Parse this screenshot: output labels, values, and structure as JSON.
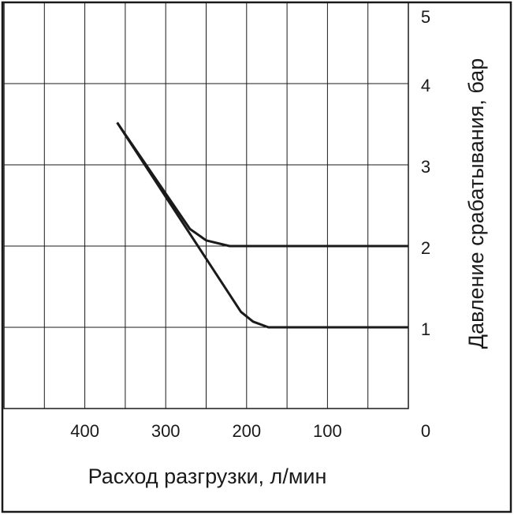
{
  "chart_data": {
    "type": "line",
    "xlabel": "Расход разгрузки, л/мин",
    "ylabel": "Давление срабатывания, бар",
    "xlim": [
      500,
      0
    ],
    "ylim": [
      0,
      5
    ],
    "xticks": [
      0,
      100,
      200,
      300,
      400
    ],
    "yticks": [
      1,
      2,
      3,
      4,
      5
    ],
    "minor_xticks": [
      50,
      150,
      250,
      350,
      450
    ],
    "grid": true,
    "series": [
      {
        "color": "#1a1a1a",
        "x": [
          360,
          270,
          250,
          221,
          0
        ],
        "values": [
          3.52,
          2.21,
          2.07,
          2.0,
          2.0
        ]
      },
      {
        "color": "#1a1a1a",
        "x": [
          360,
          207,
          192,
          173,
          0
        ],
        "values": [
          3.52,
          1.19,
          1.07,
          1.0,
          1.0
        ]
      }
    ]
  }
}
